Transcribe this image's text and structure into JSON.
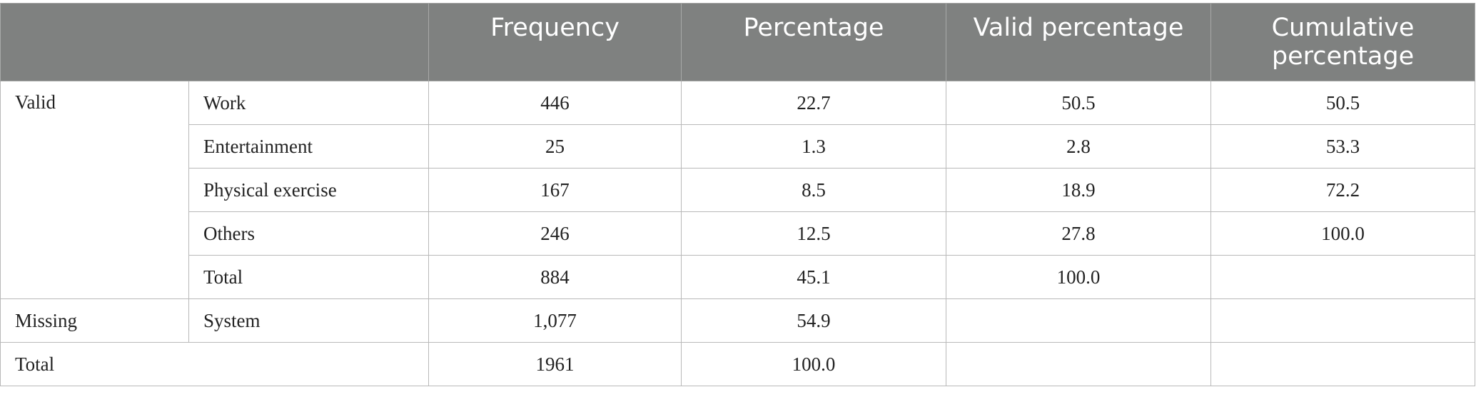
{
  "table": {
    "headers": [
      "",
      "Frequency",
      "Percentage",
      "Valid percentage",
      "Cumulative percentage"
    ],
    "valid_group": {
      "label": "Valid",
      "rows": [
        {
          "category": "Work",
          "frequency": "446",
          "percentage": "22.7",
          "valid_percentage": "50.5",
          "cumulative_percentage": "50.5"
        },
        {
          "category": "Entertainment",
          "frequency": "25",
          "percentage": "1.3",
          "valid_percentage": "2.8",
          "cumulative_percentage": "53.3"
        },
        {
          "category": "Physical exercise",
          "frequency": "167",
          "percentage": "8.5",
          "valid_percentage": "18.9",
          "cumulative_percentage": "72.2"
        },
        {
          "category": "Others",
          "frequency": "246",
          "percentage": "12.5",
          "valid_percentage": "27.8",
          "cumulative_percentage": "100.0"
        },
        {
          "category": "Total",
          "frequency": "884",
          "percentage": "45.1",
          "valid_percentage": "100.0",
          "cumulative_percentage": ""
        }
      ]
    },
    "missing_group": {
      "label": "Missing",
      "category": "System",
      "frequency": "1,077",
      "percentage": "54.9",
      "valid_percentage": "",
      "cumulative_percentage": ""
    },
    "total_row": {
      "label": "Total",
      "frequency": "1961",
      "percentage": "100.0",
      "valid_percentage": "",
      "cumulative_percentage": ""
    }
  }
}
